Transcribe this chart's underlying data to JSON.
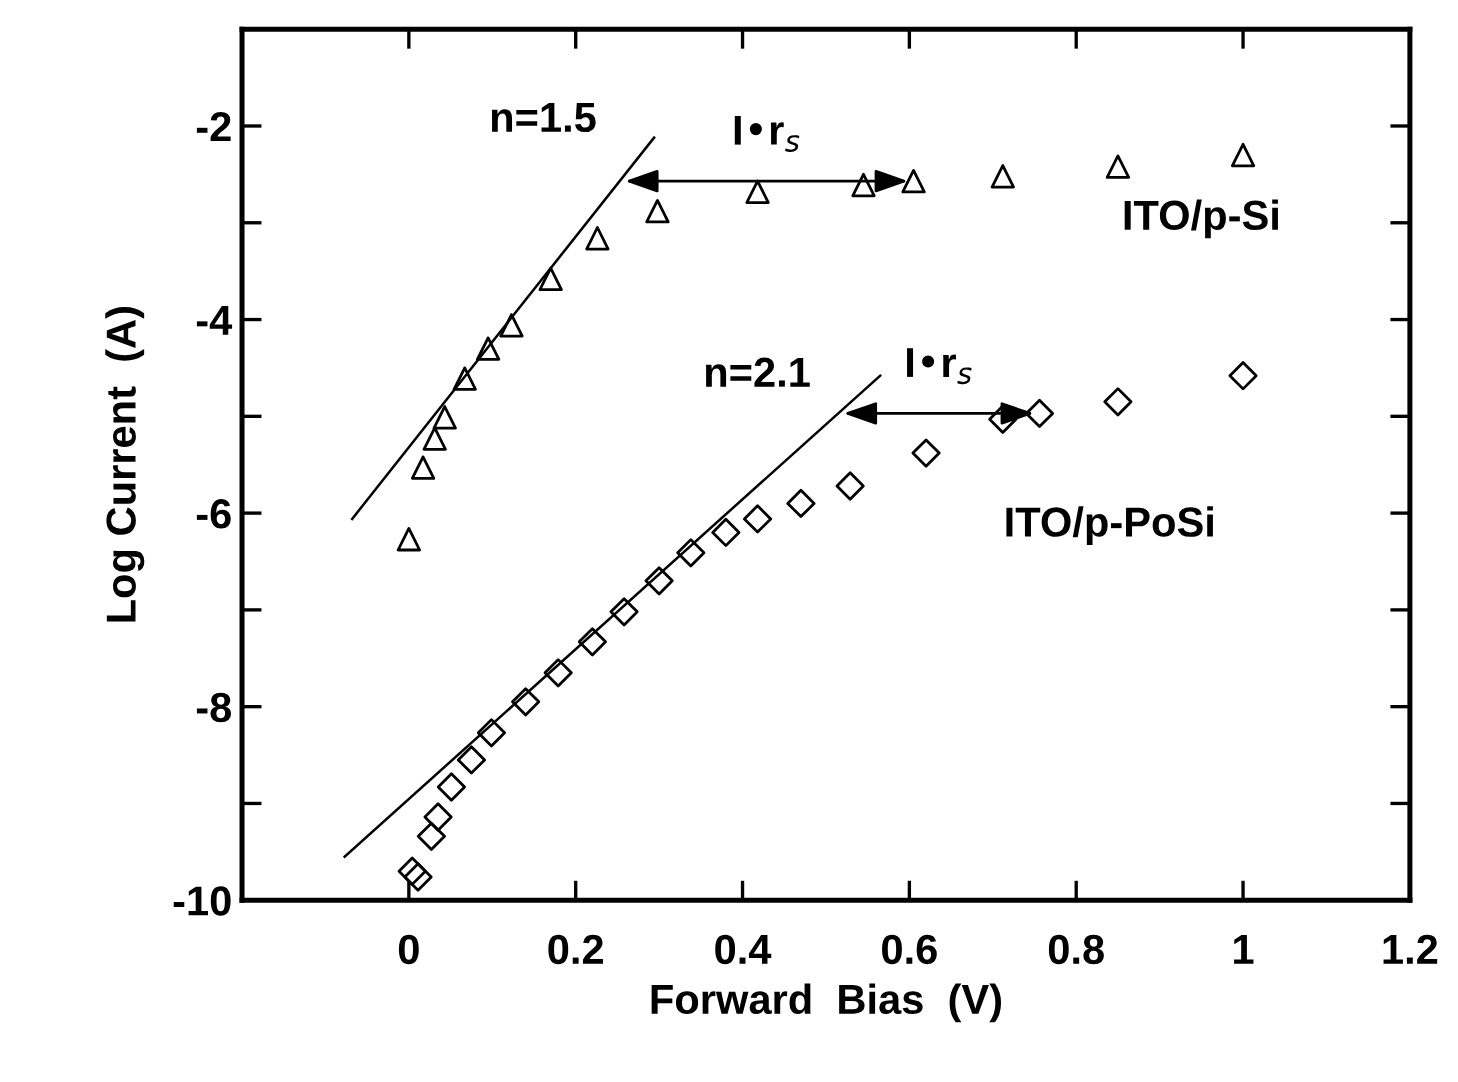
{
  "chart_data": {
    "type": "scatter",
    "xlabel": "Forward  Bias  (V)",
    "ylabel": "Log Current  (A)",
    "xlim": [
      -0.2,
      1.2
    ],
    "xticks": [
      0,
      0.2,
      0.4,
      0.6,
      0.8,
      1,
      1.2
    ],
    "ylim": [
      -10,
      -1
    ],
    "yticks": [
      {
        "value": -10,
        "label": "-10"
      },
      {
        "value": -9,
        "label": null
      },
      {
        "value": -8,
        "label": "-8"
      },
      {
        "value": -7,
        "label": null
      },
      {
        "value": -6,
        "label": "-6"
      },
      {
        "value": -5,
        "label": null
      },
      {
        "value": -4,
        "label": "-4"
      },
      {
        "value": -3,
        "label": null
      },
      {
        "value": -2,
        "label": "-2"
      }
    ],
    "grid": false,
    "legend": false,
    "series": [
      {
        "marker": "triangle",
        "color": "#000000",
        "x": [
          0.0,
          0.017,
          0.031,
          0.043,
          0.067,
          0.095,
          0.123,
          0.17,
          0.226,
          0.298,
          0.418,
          0.545,
          0.605,
          0.712,
          0.85,
          1.0
        ],
        "values": [
          -6.27,
          -5.53,
          -5.23,
          -5.01,
          -4.61,
          -4.3,
          -4.06,
          -3.58,
          -3.16,
          -2.88,
          -2.68,
          -2.61,
          -2.57,
          -2.52,
          -2.42,
          -2.3
        ]
      },
      {
        "marker": "diamond",
        "color": "#000000",
        "x": [
          0.004,
          0.011,
          0.027,
          0.035,
          0.051,
          0.075,
          0.099,
          0.14,
          0.179,
          0.22,
          0.258,
          0.3,
          0.338,
          0.38,
          0.418,
          0.47,
          0.529,
          0.62,
          0.712,
          0.756,
          0.85,
          1.0
        ],
        "values": [
          -9.7,
          -9.76,
          -9.34,
          -9.14,
          -8.83,
          -8.55,
          -8.27,
          -7.95,
          -7.65,
          -7.33,
          -7.02,
          -6.7,
          -6.41,
          -6.2,
          -6.06,
          -5.9,
          -5.72,
          -5.38,
          -5.03,
          -4.97,
          -4.85,
          -4.58
        ]
      },
      {
        "type": "line",
        "color": "#000000",
        "x": [
          -0.068,
          0.294
        ],
        "values": [
          -6.06,
          -2.12
        ]
      },
      {
        "type": "line",
        "color": "#000000",
        "x": [
          -0.077,
          0.565
        ],
        "values": [
          -9.55,
          -4.58
        ]
      }
    ],
    "annotations": [
      {
        "text": "n=1.5",
        "x": 0.294,
        "y": -2.12
      },
      {
        "text": "I•r$_{s}$",
        "x": 0.605,
        "y": -2.57
      },
      {
        "text": "ITO/p-Si",
        "x": 1.0,
        "y": -2.3
      },
      "n=2.1",
      {
        "text": "I•r$_{s}$",
        "x": 0.756,
        "y": -4.97
      },
      "ITO/p-PoSi"
    ]
  }
}
